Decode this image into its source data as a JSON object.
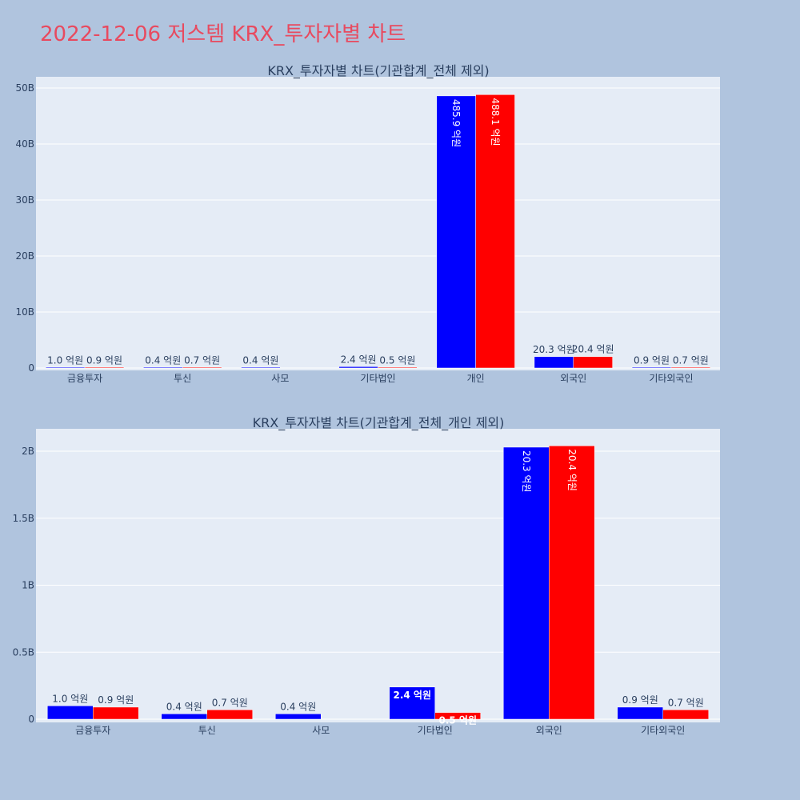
{
  "title": "2022-12-06 저스템 KRX_투자자별 차트",
  "colors": {
    "series1": "#0000ff",
    "series2": "#ff0000",
    "title": "#e84a5f"
  },
  "chart_data": [
    {
      "type": "bar",
      "title": "KRX_투자자별 차트(기관합계_전체 제외)",
      "categories": [
        "금융투자",
        "투신",
        "사모",
        "기타법인",
        "개인",
        "외국인",
        "기타외국인"
      ],
      "ylim": [
        0,
        50000000000
      ],
      "yticks": [
        0,
        10000000000,
        20000000000,
        30000000000,
        40000000000,
        50000000000
      ],
      "ytick_labels": [
        "0",
        "10B",
        "20B",
        "30B",
        "40B",
        "50B"
      ],
      "grid": true,
      "series": [
        {
          "values": [
            100000000,
            40000000,
            40000000,
            240000000,
            48590000000,
            2030000000,
            90000000
          ],
          "labels": [
            "1.0 억원",
            "0.4 억원",
            "0.4 억원",
            "2.4 억원",
            "485.9 억원",
            "20.3 억원",
            "0.9 억원"
          ]
        },
        {
          "values": [
            90000000,
            70000000,
            null,
            50000000,
            48810000000,
            2040000000,
            70000000
          ],
          "labels": [
            "0.9 억원",
            "0.7 억원",
            "",
            "0.5 억원",
            "488.1 억원",
            "20.4 억원",
            "0.7 억원"
          ]
        }
      ]
    },
    {
      "type": "bar",
      "title": "KRX_투자자별 차트(기관합계_전체_개인 제외)",
      "categories": [
        "금융투자",
        "투신",
        "사모",
        "기타법인",
        "외국인",
        "기타외국인"
      ],
      "ylim": [
        0,
        2150000000
      ],
      "yticks": [
        0,
        500000000,
        1000000000,
        1500000000,
        2000000000
      ],
      "ytick_labels": [
        "0",
        "0.5B",
        "1B",
        "1.5B",
        "2B"
      ],
      "grid": true,
      "series": [
        {
          "values": [
            100000000,
            40000000,
            40000000,
            240000000,
            2030000000,
            90000000
          ],
          "labels": [
            "1.0 억원",
            "0.4 억원",
            "0.4 억원",
            "2.4 억원",
            "20.3 억원",
            "0.9 억원"
          ]
        },
        {
          "values": [
            90000000,
            70000000,
            null,
            50000000,
            2040000000,
            70000000
          ],
          "labels": [
            "0.9 억원",
            "0.7 억원",
            "",
            "0.5 억원",
            "20.4 억원",
            "0.7 억원"
          ]
        }
      ]
    }
  ]
}
